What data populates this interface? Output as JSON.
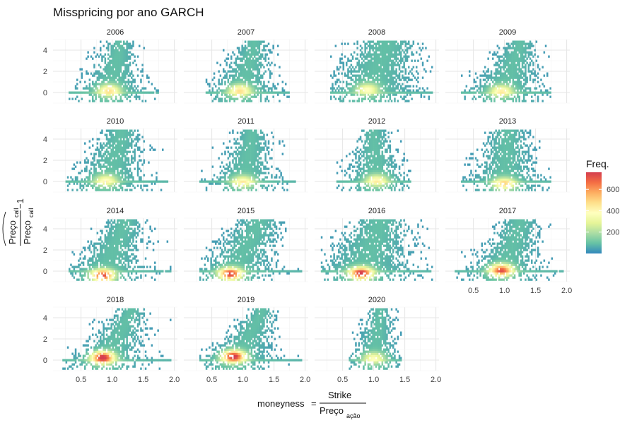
{
  "chart_data": {
    "type": "heatmap",
    "title": "Misspricing por ano GARCH",
    "xlabel": {
      "prefix": "moneyness",
      "equals": "=",
      "numerator": "Strike",
      "denominator_main": "Preço",
      "denominator_sub": "ação"
    },
    "ylabel": {
      "hat_main": "Preço",
      "hat_sub": "call",
      "den_main": "Preço",
      "den_sub": "call",
      "suffix": "−1"
    },
    "xlim": [
      0.05,
      2.05
    ],
    "ylim": [
      -1.0,
      5.0
    ],
    "x_ticks": [
      0.5,
      1.0,
      1.5,
      2.0
    ],
    "x_tick_labels": [
      "0.5",
      "1.0",
      "1.5",
      "2.0"
    ],
    "y_ticks": [
      0,
      2,
      4
    ],
    "y_tick_labels": [
      "0",
      "2",
      "4"
    ],
    "grid": true,
    "legend": {
      "title": "Freq.",
      "placement": "right",
      "ticks": [
        200,
        400,
        600
      ],
      "tick_labels": [
        "200",
        "400",
        "600"
      ],
      "range": [
        0,
        760
      ],
      "colors": [
        "#3288bd",
        "#66c2a5",
        "#abdda4",
        "#e6f598",
        "#ffffbf",
        "#fee08b",
        "#fdae61",
        "#f46d43",
        "#d53e4f"
      ]
    },
    "panels": [
      {
        "label": "2006",
        "x_range": [
          0.3,
          1.75
        ],
        "peak_x": 0.95,
        "peak_y": 0.2,
        "spread": 0.55,
        "width_top": 0.22,
        "center_top": 1.12,
        "peak_freq": 380
      },
      {
        "label": "2007",
        "x_range": [
          0.4,
          1.75
        ],
        "peak_x": 0.95,
        "peak_y": 0.2,
        "spread": 0.55,
        "width_top": 0.22,
        "center_top": 1.18,
        "peak_freq": 380
      },
      {
        "label": "2008",
        "x_range": [
          0.3,
          1.95
        ],
        "peak_x": 0.9,
        "peak_y": 0.3,
        "spread": 0.7,
        "width_top": 0.5,
        "center_top": 1.2,
        "peak_freq": 300
      },
      {
        "label": "2009",
        "x_range": [
          0.3,
          1.75
        ],
        "peak_x": 0.95,
        "peak_y": 0.15,
        "spread": 0.6,
        "width_top": 0.25,
        "center_top": 1.25,
        "peak_freq": 340
      },
      {
        "label": "2010",
        "x_range": [
          0.25,
          1.9
        ],
        "peak_x": 0.9,
        "peak_y": 0.1,
        "spread": 0.6,
        "width_top": 0.3,
        "center_top": 1.15,
        "peak_freq": 300
      },
      {
        "label": "2011",
        "x_range": [
          0.3,
          1.85
        ],
        "peak_x": 1.0,
        "peak_y": 0.0,
        "spread": 0.5,
        "width_top": 0.25,
        "center_top": 1.15,
        "peak_freq": 320
      },
      {
        "label": "2012",
        "x_range": [
          0.4,
          1.6
        ],
        "peak_x": 1.05,
        "peak_y": 0.1,
        "spread": 0.5,
        "width_top": 0.22,
        "center_top": 1.0,
        "peak_freq": 320
      },
      {
        "label": "2013",
        "x_range": [
          0.3,
          1.75
        ],
        "peak_x": 1.0,
        "peak_y": -0.2,
        "spread": 0.55,
        "width_top": 0.3,
        "center_top": 1.05,
        "peak_freq": 400
      },
      {
        "label": "2014",
        "x_range": [
          0.3,
          1.95
        ],
        "peak_x": 0.85,
        "peak_y": -0.4,
        "spread": 0.6,
        "width_top": 0.3,
        "center_top": 1.2,
        "peak_freq": 640
      },
      {
        "label": "2015",
        "x_range": [
          0.3,
          1.95
        ],
        "peak_x": 0.8,
        "peak_y": -0.25,
        "spread": 0.6,
        "width_top": 0.35,
        "center_top": 1.25,
        "peak_freq": 660
      },
      {
        "label": "2016",
        "x_range": [
          0.15,
          1.95
        ],
        "peak_x": 0.8,
        "peak_y": -0.2,
        "spread": 0.75,
        "width_top": 0.45,
        "center_top": 1.1,
        "peak_freq": 700
      },
      {
        "label": "2017",
        "x_range": [
          0.2,
          1.95
        ],
        "peak_x": 0.95,
        "peak_y": 0.1,
        "spread": 0.55,
        "width_top": 0.3,
        "center_top": 1.25,
        "peak_freq": 620
      },
      {
        "label": "2018",
        "x_range": [
          0.2,
          1.95
        ],
        "peak_x": 0.85,
        "peak_y": 0.25,
        "spread": 0.55,
        "width_top": 0.25,
        "center_top": 1.3,
        "peak_freq": 720
      },
      {
        "label": "2019",
        "x_range": [
          0.3,
          1.95
        ],
        "peak_x": 0.85,
        "peak_y": 0.35,
        "spread": 0.55,
        "width_top": 0.22,
        "center_top": 1.3,
        "peak_freq": 720
      },
      {
        "label": "2020",
        "x_range": [
          0.6,
          1.45
        ],
        "peak_x": 1.0,
        "peak_y": 0.2,
        "spread": 0.4,
        "width_top": 0.18,
        "center_top": 1.1,
        "peak_freq": 280
      }
    ]
  }
}
